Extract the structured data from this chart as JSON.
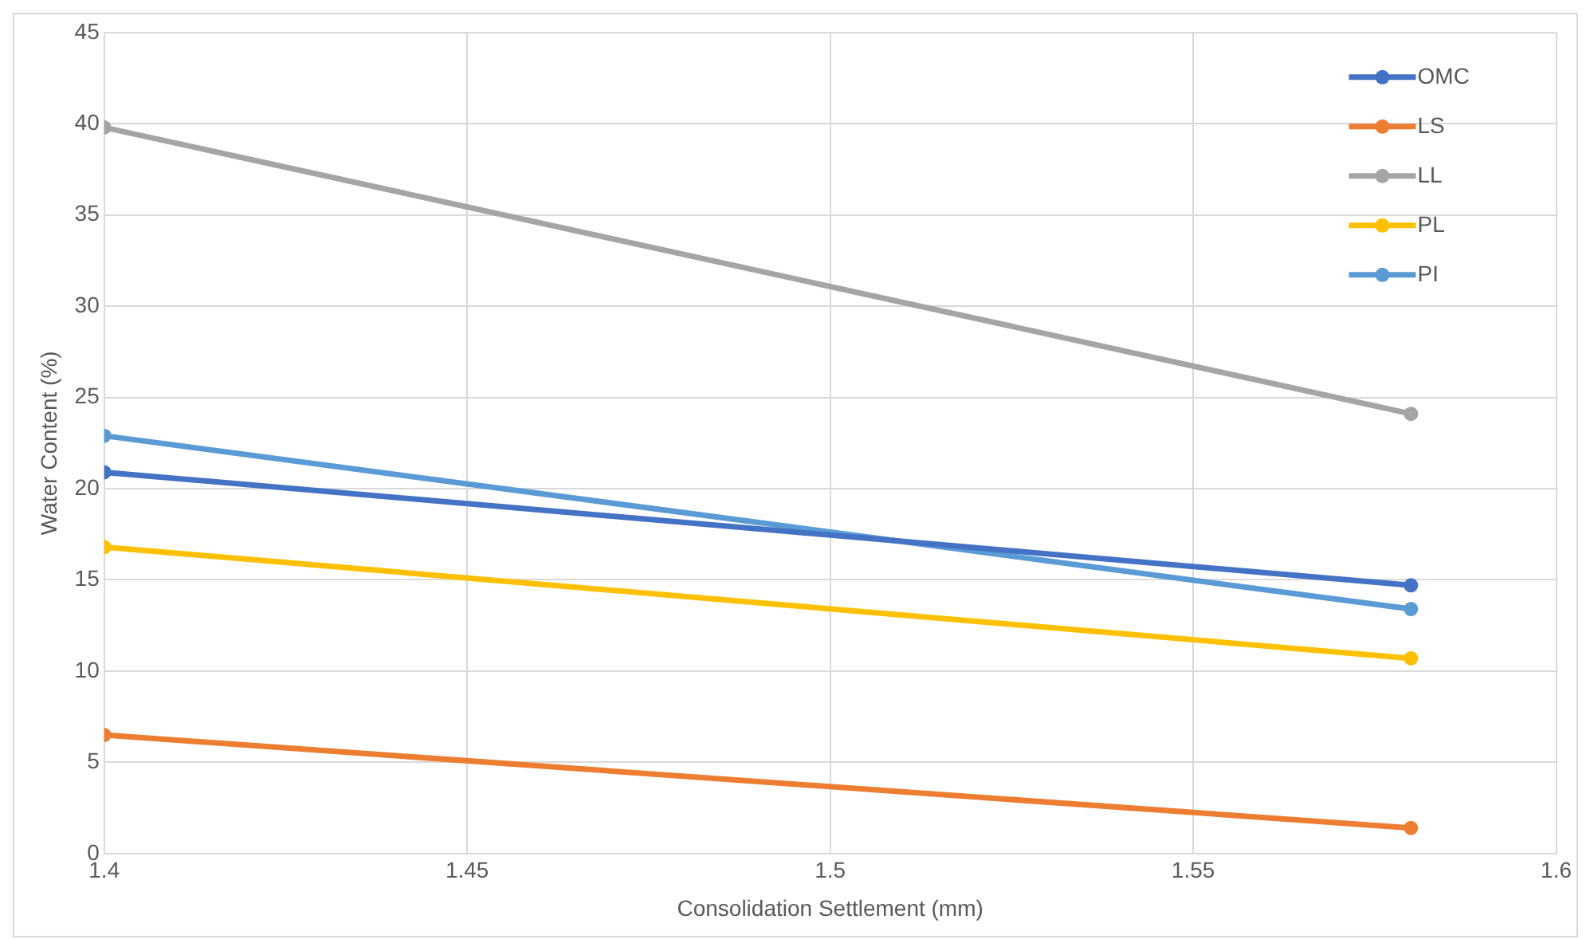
{
  "chart_data": {
    "type": "line",
    "xlabel": "Consolidation Settlement (mm)",
    "ylabel": "Water Content (%)",
    "x": [
      1.4,
      1.58
    ],
    "series": [
      {
        "name": "OMC",
        "color": "#4472c4",
        "values": [
          20.9,
          14.7
        ]
      },
      {
        "name": "LS",
        "color": "#ed7d31",
        "values": [
          6.5,
          1.4
        ]
      },
      {
        "name": "LL",
        "color": "#a5a5a5",
        "values": [
          39.8,
          24.1
        ]
      },
      {
        "name": "PL",
        "color": "#ffc000",
        "values": [
          16.8,
          10.7
        ]
      },
      {
        "name": "PI",
        "color": "#5b9bd5",
        "values": [
          22.9,
          13.4
        ]
      }
    ],
    "xlim": [
      1.4,
      1.6
    ],
    "xticks": [
      1.4,
      1.45,
      1.5,
      1.55,
      1.6
    ],
    "ylim": [
      0,
      45
    ],
    "yticks": [
      0,
      5,
      10,
      15,
      20,
      25,
      30,
      35,
      40,
      45
    ],
    "grid": true,
    "legend": "top right",
    "marker": "circle",
    "line_style": "solid"
  }
}
